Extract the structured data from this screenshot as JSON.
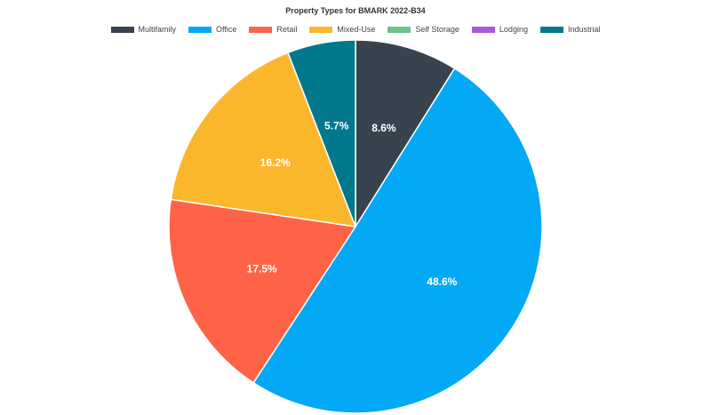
{
  "chart_data": {
    "type": "pie",
    "title": "Property Types for BMARK 2022-B34",
    "legend_position": "top-center",
    "categories": [
      "Multifamily",
      "Office",
      "Retail",
      "Mixed-Use",
      "Self Storage",
      "Lodging",
      "Industrial"
    ],
    "values": [
      8.6,
      48.6,
      17.5,
      16.2,
      0,
      0,
      5.7
    ],
    "labels": [
      "8.6%",
      "48.6%",
      "17.5%",
      "16.2%",
      "",
      "",
      "5.7%"
    ],
    "colors": [
      "#37434f",
      "#03a9f4",
      "#ff6347",
      "#fbb72c",
      "#6fc28b",
      "#a55cdc",
      "#01788c"
    ]
  }
}
